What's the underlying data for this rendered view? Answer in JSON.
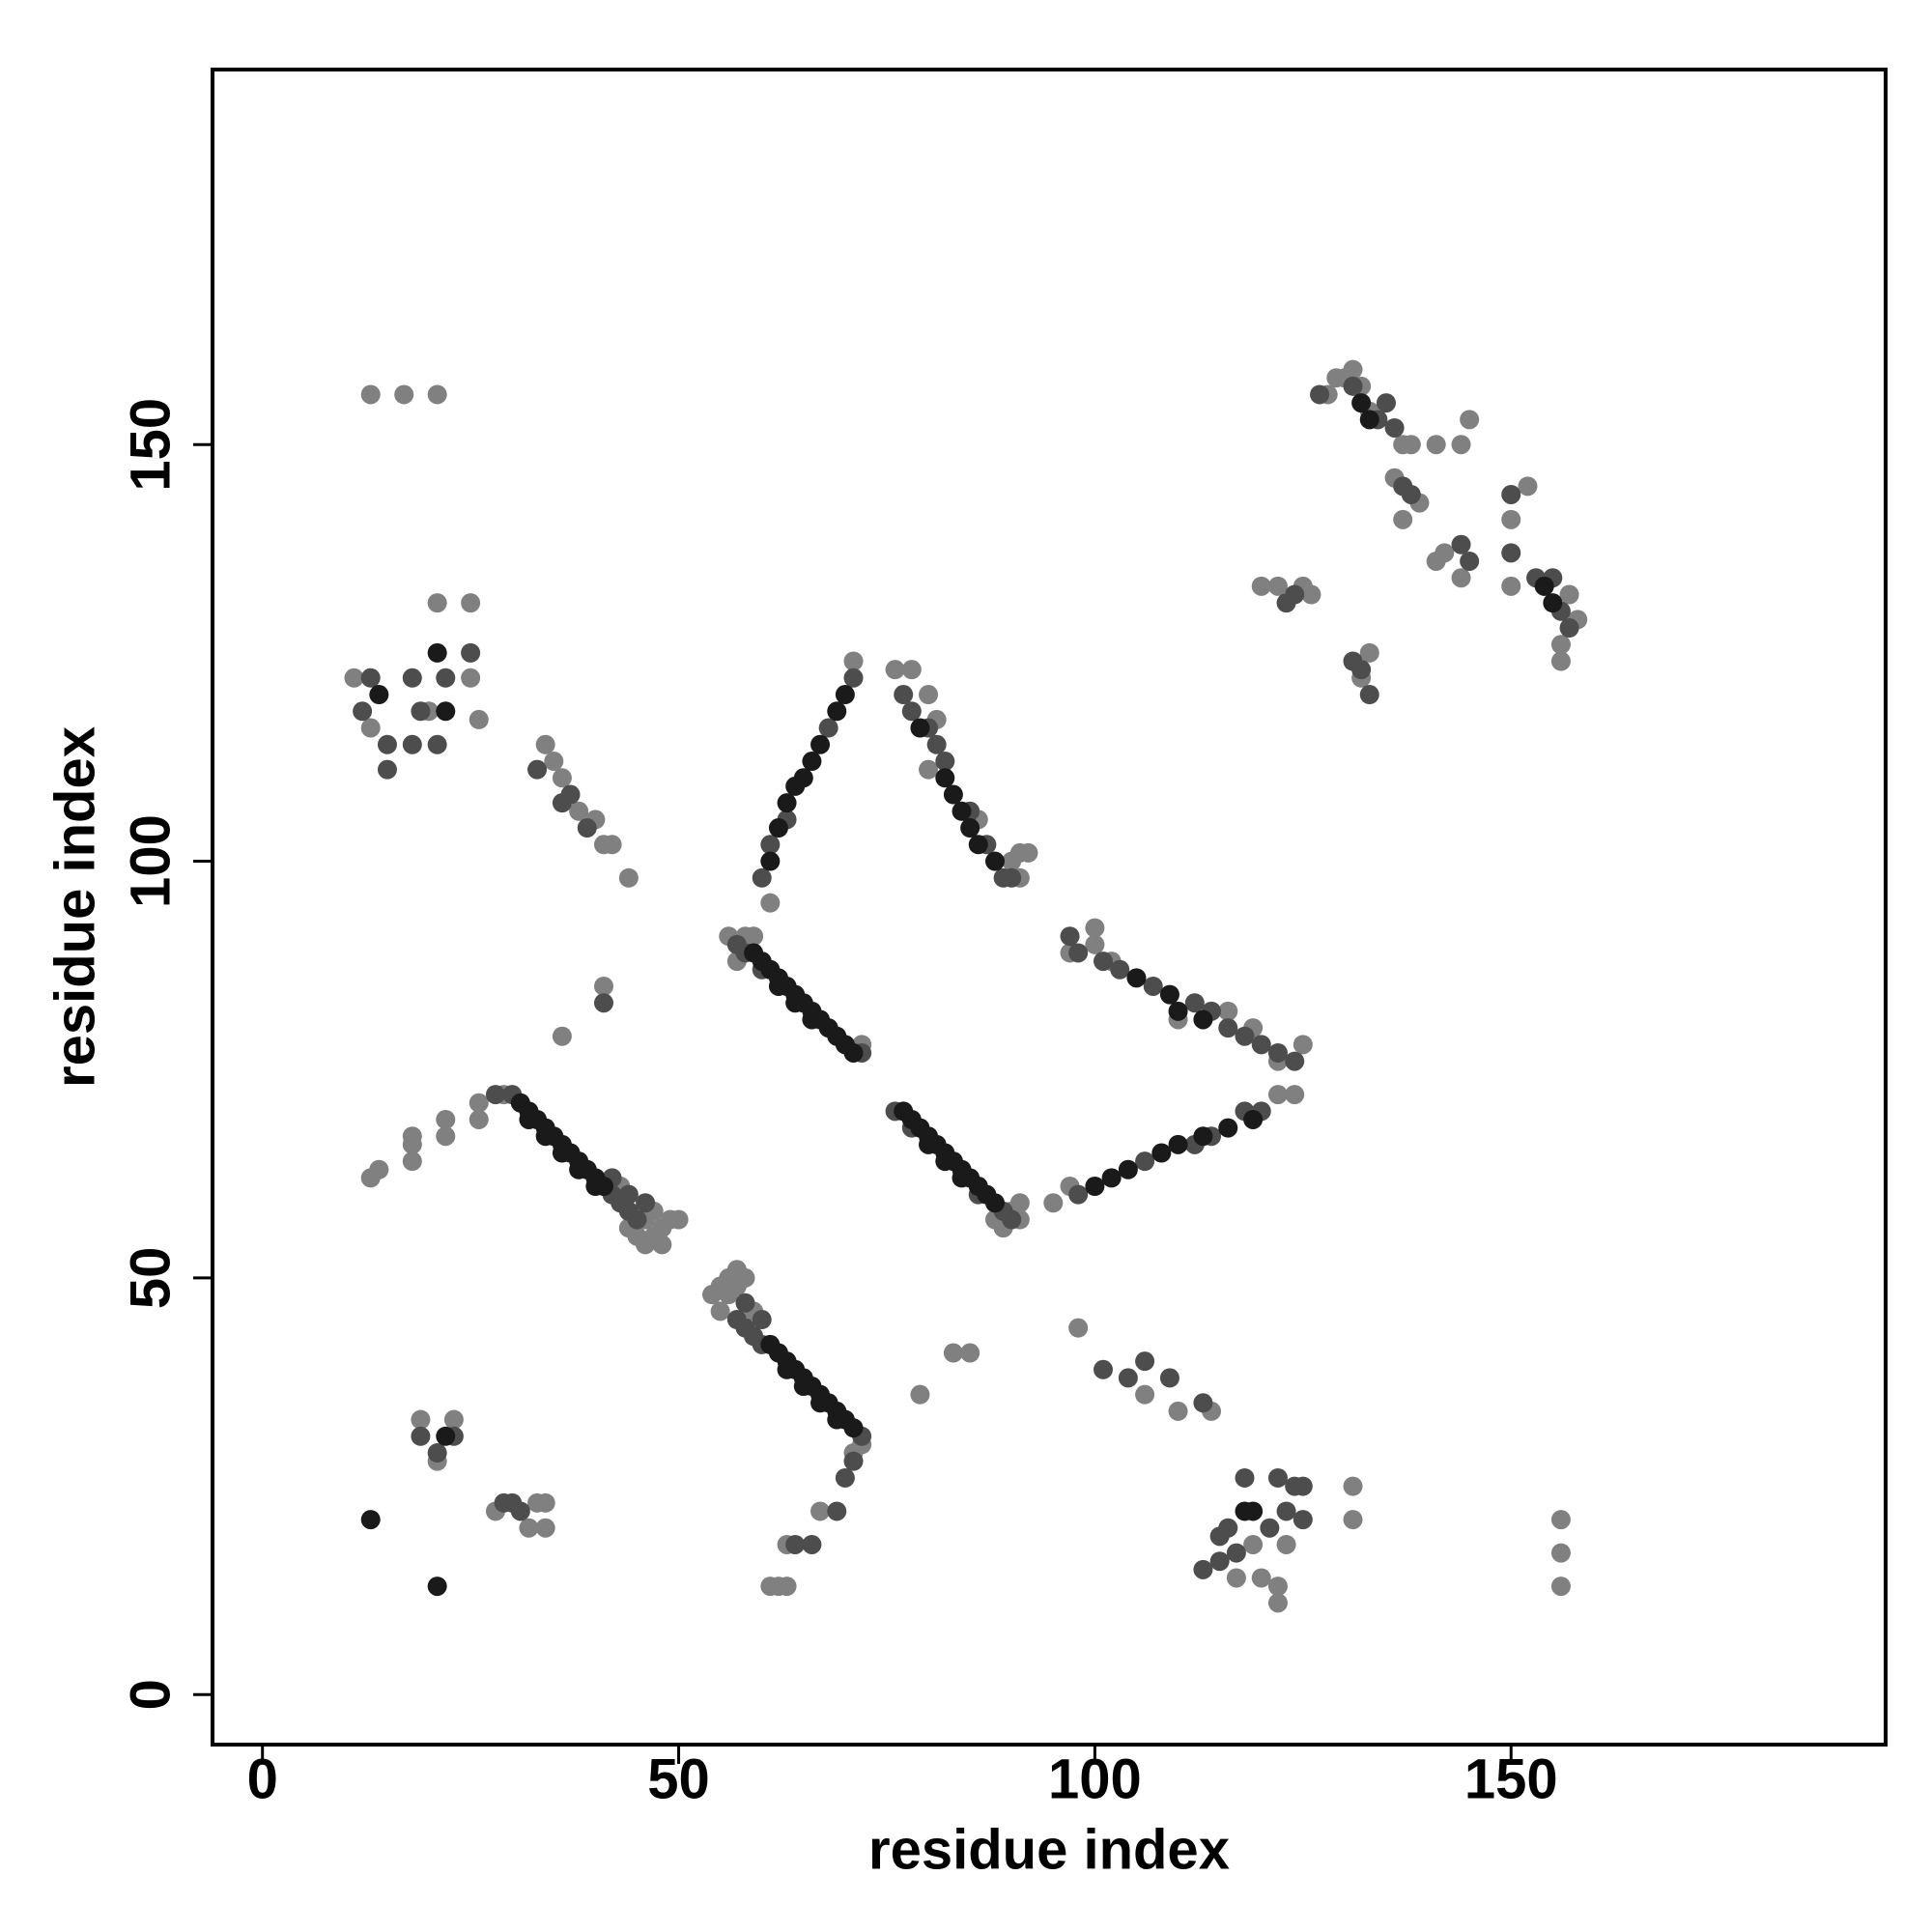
{
  "chart_data": {
    "type": "scatter",
    "xlabel": "residue index",
    "ylabel": "residue index",
    "xlim": [
      -6,
      195
    ],
    "ylim": [
      -6,
      195
    ],
    "xticks": [
      0,
      50,
      100,
      150
    ],
    "yticks": [
      0,
      50,
      100,
      150
    ],
    "grid": false,
    "series": [
      {
        "color": "#808080",
        "x": [
          13,
          17,
          21,
          21,
          25,
          11,
          25,
          26,
          13,
          20,
          13,
          14,
          18,
          18,
          18,
          22,
          22,
          26,
          26,
          29,
          44,
          45,
          46,
          47,
          48,
          49,
          50,
          46,
          48,
          43,
          47,
          54,
          55,
          56,
          56,
          57,
          55,
          57,
          58,
          59,
          72,
          71,
          67,
          63,
          62,
          63,
          61,
          56,
          57,
          58,
          59,
          72,
          88,
          89,
          90,
          91,
          91,
          95,
          61,
          71,
          76,
          78,
          80,
          81,
          80,
          86,
          90,
          91,
          92,
          91,
          97,
          122,
          124,
          97,
          100,
          100,
          102,
          110,
          116,
          119,
          122,
          125,
          98,
          110,
          114,
          106,
          117,
          119,
          120,
          122,
          122,
          123,
          131,
          131,
          156,
          156,
          156,
          19,
          23,
          21,
          28,
          32,
          33,
          34,
          34,
          35,
          34,
          36,
          38,
          40,
          41,
          42,
          44,
          41,
          36,
          79,
          83,
          85,
          120,
          122,
          125,
          126,
          132,
          133,
          128,
          129,
          130,
          131,
          132,
          137,
          138,
          141,
          144,
          145,
          136,
          139,
          137,
          141,
          142,
          144,
          150,
          150,
          152,
          158,
          156,
          156,
          157,
          133
        ],
        "y": [
          156,
          156,
          156,
          131,
          131,
          122,
          122,
          117,
          116,
          118,
          62,
          63,
          64,
          66,
          67,
          67,
          69,
          69,
          71,
          72,
          56,
          55,
          54,
          55,
          56,
          57,
          57,
          57,
          54,
          61,
          58,
          48,
          49,
          48,
          50,
          49,
          46,
          51,
          50,
          46,
          30,
          29,
          22,
          18,
          13,
          13,
          13,
          91,
          88,
          91,
          91,
          78,
          57,
          56,
          58,
          57,
          59,
          59,
          95,
          124,
          123,
          123,
          120,
          117,
          111,
          105,
          100,
          101,
          101,
          98,
          61,
          72,
          72,
          89,
          92,
          90,
          88,
          81,
          82,
          80,
          76,
          78,
          44,
          34,
          34,
          36,
          14,
          18,
          14,
          11,
          13,
          18,
          25,
          21,
          21,
          17,
          13,
          33,
          33,
          28,
          22,
          20,
          23,
          20,
          23,
          112,
          114,
          110,
          106,
          105,
          102,
          102,
          98,
          85,
          79,
          36,
          41,
          41,
          133,
          133,
          133,
          132,
          122,
          125,
          156,
          158,
          158,
          159,
          157,
          150,
          150,
          150,
          150,
          153,
          146,
          143,
          141,
          136,
          137,
          134,
          141,
          133,
          145,
          129,
          126,
          124,
          132,
          154
        ]
      },
      {
        "color": "#4d4d4d",
        "x": [
          28,
          30,
          42,
          43,
          44,
          45,
          44,
          42,
          46,
          57,
          58,
          59,
          60,
          58,
          60,
          72,
          71,
          70,
          69,
          66,
          64,
          57,
          58,
          60,
          72,
          76,
          78,
          89,
          90,
          86,
          60,
          61,
          63,
          68,
          71,
          77,
          78,
          80,
          81,
          82,
          85,
          87,
          89,
          90,
          98,
          106,
          112,
          114,
          118,
          120,
          97,
          98,
          101,
          103,
          107,
          112,
          114,
          116,
          118,
          120,
          122,
          124,
          101,
          104,
          106,
          109,
          113,
          113,
          115,
          115,
          116,
          117,
          118,
          121,
          122,
          123,
          124,
          125,
          125,
          19,
          21,
          23,
          29,
          30,
          31,
          12,
          13,
          15,
          15,
          18,
          18,
          19,
          21,
          25,
          22,
          33,
          37,
          39,
          36,
          41,
          123,
          124,
          131,
          132,
          133,
          127,
          131,
          134,
          135,
          136,
          137,
          138,
          144,
          145,
          150,
          150,
          153,
          156,
          157,
          155
        ],
        "y": [
          72,
          72,
          60,
          59,
          58,
          57,
          60,
          62,
          59,
          45,
          44,
          43,
          42,
          47,
          45,
          31,
          28,
          26,
          22,
          18,
          18,
          90,
          89,
          87,
          77,
          70,
          68,
          58,
          57,
          60,
          98,
          102,
          105,
          116,
          122,
          120,
          118,
          116,
          114,
          112,
          106,
          102,
          98,
          98,
          60,
          64,
          66,
          67,
          70,
          70,
          91,
          89,
          88,
          87,
          85,
          83,
          82,
          80,
          79,
          78,
          77,
          76,
          39,
          38,
          40,
          38,
          35,
          15,
          16,
          19,
          20,
          17,
          26,
          20,
          26,
          22,
          25,
          25,
          21,
          31,
          29,
          31,
          23,
          23,
          22,
          118,
          122,
          114,
          111,
          122,
          114,
          118,
          114,
          125,
          122,
          111,
          108,
          104,
          107,
          83,
          131,
          132,
          124,
          123,
          120,
          156,
          157,
          153,
          155,
          152,
          145,
          144,
          138,
          136,
          144,
          137,
          134,
          130,
          128,
          134
        ]
      },
      {
        "color": "#1a1a1a",
        "x": [
          31,
          32,
          33,
          34,
          35,
          36,
          37,
          38,
          39,
          40,
          41,
          32,
          34,
          36,
          38,
          40,
          61,
          62,
          63,
          64,
          65,
          66,
          67,
          68,
          69,
          70,
          63,
          65,
          67,
          69,
          71,
          59,
          60,
          61,
          62,
          63,
          64,
          65,
          66,
          67,
          68,
          69,
          70,
          71,
          62,
          64,
          66,
          77,
          78,
          79,
          80,
          81,
          82,
          83,
          84,
          85,
          86,
          87,
          88,
          80,
          82,
          84,
          61,
          62,
          63,
          64,
          65,
          66,
          67,
          69,
          70,
          82,
          83,
          84,
          85,
          86,
          88,
          79,
          100,
          102,
          104,
          108,
          110,
          113,
          116,
          119,
          105,
          109,
          110,
          113,
          13,
          21,
          22,
          21,
          118,
          119,
          132,
          133,
          154,
          155,
          14,
          22
        ],
        "y": [
          71,
          70,
          69,
          68,
          67,
          66,
          65,
          64,
          63,
          62,
          61,
          69,
          67,
          65,
          63,
          61,
          42,
          41,
          40,
          39,
          38,
          37,
          36,
          35,
          34,
          33,
          39,
          37,
          35,
          33,
          32,
          89,
          88,
          87,
          86,
          85,
          84,
          83,
          82,
          81,
          80,
          79,
          78,
          77,
          85,
          83,
          81,
          70,
          69,
          68,
          67,
          66,
          65,
          64,
          63,
          62,
          61,
          60,
          59,
          66,
          64,
          62,
          100,
          104,
          107,
          109,
          110,
          112,
          114,
          118,
          120,
          110,
          108,
          106,
          104,
          102,
          100,
          116,
          61,
          62,
          63,
          65,
          66,
          67,
          68,
          69,
          86,
          84,
          82,
          81,
          21,
          13,
          118,
          125,
          22,
          22,
          155,
          153,
          133,
          131,
          120,
          31
        ]
      }
    ]
  }
}
